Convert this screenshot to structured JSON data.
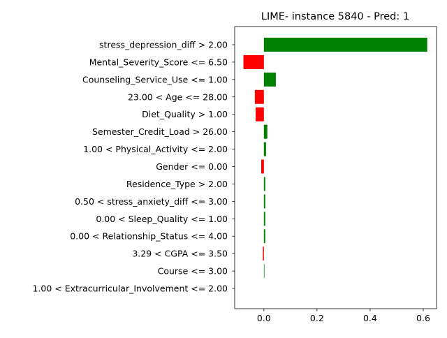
{
  "chart_data": {
    "type": "bar",
    "orientation": "horizontal",
    "title": "LIME- instance 5840 - Pred: 1",
    "xlabel": "",
    "ylabel": "",
    "xlim": [
      -0.11,
      0.65
    ],
    "xticks": [
      0.0,
      0.2,
      0.4,
      0.6
    ],
    "xtick_labels": [
      "0.0",
      "0.2",
      "0.4",
      "0.6"
    ],
    "grid": false,
    "colors": {
      "positive": "#008000",
      "negative": "#ff0000"
    },
    "categories": [
      "stress_depression_diff > 2.00",
      "Mental_Severity_Score <= 6.50",
      "Counseling_Service_Use <= 1.00",
      "23.00 < Age <= 28.00",
      "Diet_Quality > 1.00",
      "Semester_Credit_Load > 26.00",
      "1.00 < Physical_Activity <= 2.00",
      "Gender <= 0.00",
      "Residence_Type > 2.00",
      "0.50 < stress_anxiety_diff <= 3.00",
      "0.00 < Sleep_Quality <= 1.00",
      "0.00 < Relationship_Status <= 4.00",
      "3.29 < CGPA <= 3.50",
      "Course <= 3.00",
      "1.00 < Extracurricular_Involvement <= 2.00"
    ],
    "values": [
      0.615,
      -0.077,
      0.045,
      -0.034,
      -0.031,
      0.013,
      0.008,
      -0.01,
      0.005,
      0.005,
      0.005,
      0.005,
      -0.004,
      0.002,
      0.0
    ]
  }
}
